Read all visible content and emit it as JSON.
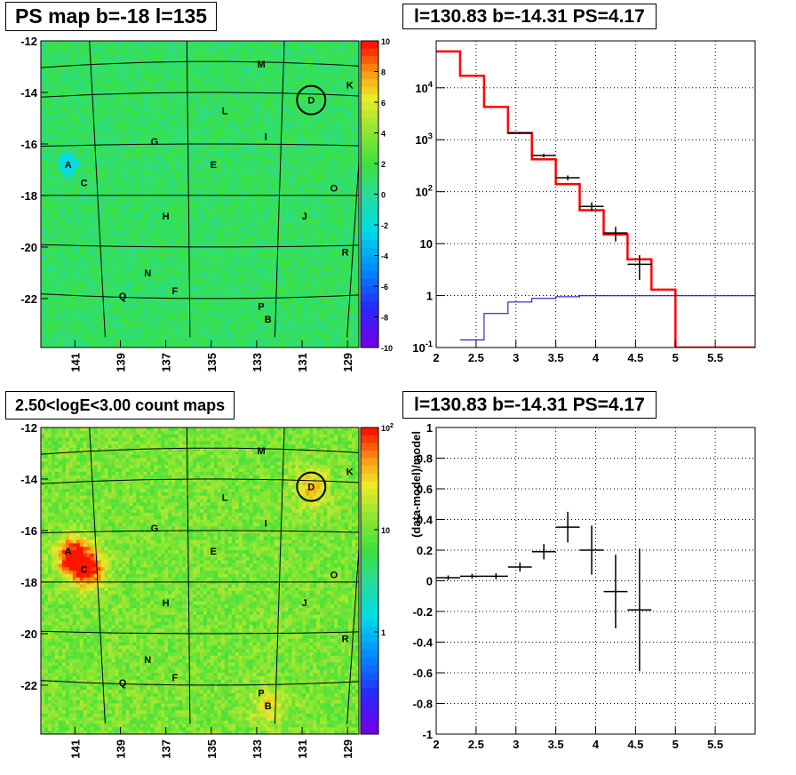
{
  "panels": {
    "tl_title": "PS map b=-18 l=135",
    "tr_title": "l=130.83 b=-14.31 PS=4.17",
    "bl_title": "2.50<logE<3.00 count maps",
    "br_title": "l=130.83 b=-14.31 PS=4.17"
  },
  "colors": {
    "frame": "#000000",
    "model_line": "#ff0000",
    "model_bg_line": "#0000cc",
    "data_marker": "#000000",
    "map_psmap_base": "#33dd33",
    "map_counts_base": "#99e640",
    "hotspot": "#ff2a00"
  },
  "chart_data": [
    {
      "type": "heatmap",
      "title": "PS map b=-18 l=135",
      "xlabel": "",
      "ylabel": "",
      "xlim": [
        128.5,
        142.5
      ],
      "ylim": [
        -23.9,
        -12
      ],
      "x_reversed": true,
      "x_ticks": [
        "141",
        "139",
        "137",
        "135",
        "133",
        "131",
        "129"
      ],
      "y_ticks": [
        "-12",
        "-14",
        "-16",
        "-18",
        "-20",
        "-22"
      ],
      "colorbar": {
        "scale": "linear",
        "range": [
          -10,
          10
        ],
        "ticks": [
          "10",
          "8",
          "6",
          "4",
          "2",
          "0",
          "-2",
          "-4",
          "-6",
          "-8",
          "-10"
        ]
      },
      "sources": [
        {
          "label": "M",
          "l": 132.8,
          "b": -12.9
        },
        {
          "label": "K",
          "l": 128.9,
          "b": -13.7
        },
        {
          "label": "D",
          "l": 130.6,
          "b": -14.3
        },
        {
          "label": "L",
          "l": 134.4,
          "b": -14.7
        },
        {
          "label": "G",
          "l": 137.5,
          "b": -15.9
        },
        {
          "label": "I",
          "l": 132.6,
          "b": -15.7
        },
        {
          "label": "A",
          "l": 141.3,
          "b": -16.8
        },
        {
          "label": "E",
          "l": 134.9,
          "b": -16.8
        },
        {
          "label": "C",
          "l": 140.6,
          "b": -17.5
        },
        {
          "label": "O",
          "l": 129.6,
          "b": -17.7
        },
        {
          "label": "H",
          "l": 137.0,
          "b": -18.8
        },
        {
          "label": "J",
          "l": 130.9,
          "b": -18.8
        },
        {
          "label": "R",
          "l": 129.1,
          "b": -20.2
        },
        {
          "label": "N",
          "l": 137.8,
          "b": -21.0
        },
        {
          "label": "F",
          "l": 136.6,
          "b": -21.7
        },
        {
          "label": "Q",
          "l": 138.9,
          "b": -21.9
        },
        {
          "label": "P",
          "l": 132.8,
          "b": -22.3
        },
        {
          "label": "B",
          "l": 132.5,
          "b": -22.8
        }
      ],
      "circled_source": "D"
    },
    {
      "type": "line",
      "title": "l=130.83 b=-14.31 PS=4.17",
      "xlabel": "",
      "ylabel": "",
      "xlim": [
        2,
        6
      ],
      "ylim": [
        0.1,
        80000
      ],
      "y_scale": "log",
      "x_ticks": [
        "2",
        "2.5",
        "3",
        "3.5",
        "4",
        "4.5",
        "5",
        "5.5"
      ],
      "y_ticks": [
        "10^-1",
        "1",
        "10",
        "10^2",
        "10^3",
        "10^4"
      ],
      "grid": true,
      "series": [
        {
          "style": "histogram",
          "color": "red",
          "bin_edges": [
            2.0,
            2.3,
            2.6,
            2.9,
            3.2,
            3.5,
            3.8,
            4.1,
            4.4,
            4.7,
            5.0,
            5.3,
            6.0
          ],
          "values": [
            50000,
            17000,
            4300,
            1350,
            420,
            140,
            44,
            15,
            5,
            1.3,
            0.1,
            0.1
          ]
        },
        {
          "style": "histogram",
          "color": "blue",
          "bin_edges": [
            2.3,
            2.6,
            2.9,
            3.2,
            3.5,
            3.8,
            6.0
          ],
          "values": [
            0.14,
            0.45,
            0.75,
            0.88,
            0.95,
            0.99
          ]
        },
        {
          "style": "errorbar",
          "color": "black",
          "x": [
            3.05,
            3.35,
            3.65,
            3.95,
            4.25,
            4.55
          ],
          "xerr": [
            0.15,
            0.15,
            0.15,
            0.15,
            0.15,
            0.15
          ],
          "y": [
            1350,
            500,
            185,
            52,
            16,
            4
          ],
          "yerr_low": [
            60,
            40,
            20,
            10,
            5,
            2
          ],
          "yerr_high": [
            60,
            40,
            20,
            10,
            5,
            2
          ]
        }
      ]
    },
    {
      "type": "heatmap",
      "title": "2.50<logE<3.00 count maps",
      "xlabel": "",
      "ylabel": "",
      "xlim": [
        128.5,
        142.5
      ],
      "ylim": [
        -23.9,
        -12
      ],
      "x_reversed": true,
      "x_ticks": [
        "141",
        "139",
        "137",
        "135",
        "133",
        "131",
        "129"
      ],
      "y_ticks": [
        "-12",
        "-14",
        "-16",
        "-18",
        "-20",
        "-22"
      ],
      "colorbar": {
        "scale": "log",
        "range": [
          0.1,
          100
        ],
        "ticks": [
          "10^2",
          "10",
          "1"
        ]
      },
      "same_sources_as": 0,
      "hotspots": [
        {
          "l": 141.1,
          "b": -17.0,
          "strength": 1.0
        },
        {
          "l": 140.4,
          "b": -17.5,
          "strength": 0.85
        },
        {
          "l": 130.6,
          "b": -14.3,
          "strength": 0.55
        },
        {
          "l": 132.5,
          "b": -22.8,
          "strength": 0.4
        }
      ]
    },
    {
      "type": "scatter",
      "title": "l=130.83 b=-14.31 PS=4.17",
      "xlabel": "",
      "ylabel": "(data-model)/model",
      "xlim": [
        2,
        6
      ],
      "ylim": [
        -1,
        1
      ],
      "x_ticks": [
        "2",
        "2.5",
        "3",
        "3.5",
        "4",
        "4.5",
        "5",
        "5.5"
      ],
      "y_ticks": [
        "1",
        "0.8",
        "0.6",
        "0.4",
        "0.2",
        "0",
        "-0.2",
        "-0.4",
        "-0.6",
        "-0.8",
        "-1"
      ],
      "grid": true,
      "points": {
        "x": [
          2.15,
          2.45,
          2.75,
          3.05,
          3.35,
          3.65,
          3.95,
          4.25,
          4.55
        ],
        "xerr": [
          0.15,
          0.15,
          0.15,
          0.15,
          0.15,
          0.15,
          0.15,
          0.15,
          0.15
        ],
        "y": [
          0.02,
          0.03,
          0.03,
          0.09,
          0.19,
          0.35,
          0.2,
          -0.07,
          -0.19
        ],
        "yerr": [
          0.015,
          0.015,
          0.02,
          0.03,
          0.05,
          0.1,
          0.16,
          0.24,
          0.4
        ]
      }
    }
  ]
}
